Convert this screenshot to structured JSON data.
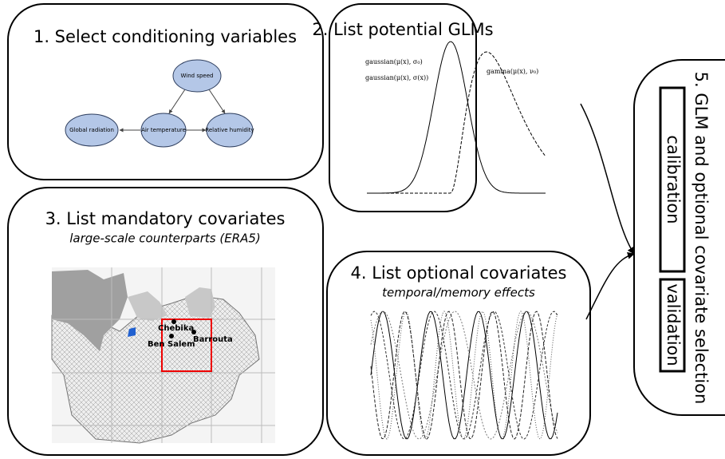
{
  "panels": [
    {
      "title": "1. Select conditioning variables",
      "nodes": [
        "Wind speed",
        "Global radiation",
        "Air temperature",
        "Relative humidity"
      ]
    },
    {
      "title": "2. List potential GLMs",
      "labels": [
        "gaussian(μ(x), σ₀)",
        "gaussian(μ(x), σ(x))",
        "gamma(μ(x), ν₀)"
      ]
    },
    {
      "title": "3. List mandatory covariates",
      "subtitle": "large-scale counterparts (ERA5)",
      "places": [
        "Chebika",
        "Ben Salem",
        "Barrouta"
      ]
    },
    {
      "title": "4. List optional covariates",
      "subtitle": "temporal/memory effects"
    },
    {
      "title": "5. GLM and optional covariate selection",
      "steps": [
        "calibration",
        "validation"
      ]
    }
  ]
}
